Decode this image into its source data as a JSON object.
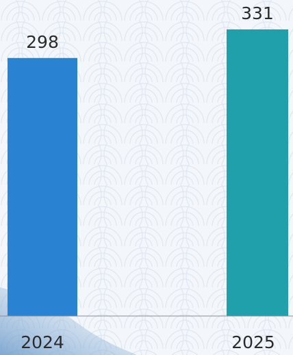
{
  "chart_data": {
    "type": "bar",
    "categories": [
      "2024",
      "2025"
    ],
    "values": [
      298,
      331
    ],
    "colors": [
      "#2a82d2",
      "#1fa0aa"
    ]
  }
}
